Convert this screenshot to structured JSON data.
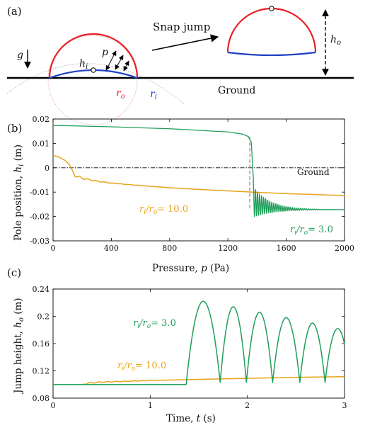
{
  "panel_a": {
    "label": "(a)",
    "snap_jump": "Snap jump",
    "gravity": "g",
    "pressure": "p",
    "inner_pole": "h",
    "inner_pole_sub": "i",
    "jump_height": "h",
    "jump_height_sub": "o",
    "outer_radius": "r",
    "outer_radius_sub": "o",
    "inner_radius": "r",
    "inner_radius_sub": "i",
    "ground": "Ground",
    "colors": {
      "outer_shell": "#e8202a",
      "inner_shell": "#1d3fc6",
      "ground_line": "#000000",
      "construction": "#e89494"
    }
  },
  "chart_data": [
    {
      "type": "line",
      "panel_label": "(b)",
      "xlabel_text": "Pressure, ",
      "xlabel_var": "p",
      "xlabel_unit": " (Pa)",
      "ylabel_text": "Pole position, ",
      "ylabel_var": "h",
      "ylabel_sub": "i",
      "ylabel_unit": " (m)",
      "xlim": [
        0,
        2000
      ],
      "ylim": [
        -0.03,
        0.02
      ],
      "xticks": [
        0,
        400,
        800,
        1200,
        1600,
        2000
      ],
      "xtick_labels": [
        "0",
        "400",
        "800",
        "1200",
        "1600",
        "2000"
      ],
      "yticks": [
        -0.03,
        -0.02,
        -0.01,
        0,
        0.01,
        0.02
      ],
      "ytick_labels": [
        "-0.03",
        "-0.02",
        "-0.01",
        "0",
        "0.01",
        "0.02"
      ],
      "ground_level": 0,
      "ground_label": "Ground",
      "grid": false,
      "series": [
        {
          "label_var": "r",
          "label_sub1": "i",
          "label_mid": "/",
          "label_var2": "r",
          "label_sub2": "o",
          "label_value": "= 3.0",
          "color": "#1f9e5a",
          "x": [
            0,
            400,
            800,
            1200,
            1300,
            1340,
            1360,
            1375
          ],
          "y": [
            0.0174,
            0.0168,
            0.016,
            0.0147,
            0.0138,
            0.0128,
            0.0105,
            -0.005
          ],
          "oscillation": {
            "start": 1375,
            "end": 2000,
            "center_start": -0.014,
            "center_end": -0.0172,
            "amplitude_start": 0.0062,
            "decay_per_pa": 0.0085,
            "period_pa": 14
          }
        },
        {
          "label_var": "r",
          "label_sub1": "i",
          "label_mid": "/",
          "label_var2": "r",
          "label_sub2": "o",
          "label_value": "= 10.0",
          "color": "#e8a317",
          "x": [
            0,
            40,
            80,
            110,
            130,
            150,
            200,
            300,
            400,
            600,
            800,
            1000,
            1200,
            1400,
            1600,
            1800,
            2000
          ],
          "y": [
            0.0051,
            0.0044,
            0.0031,
            0.0015,
            -0.0008,
            -0.0032,
            -0.0043,
            -0.0055,
            -0.0063,
            -0.0073,
            -0.0082,
            -0.0089,
            -0.0095,
            -0.0101,
            -0.0106,
            -0.011,
            -0.0114
          ]
        }
      ],
      "jump_marker": {
        "x": 1350,
        "y_top": 0.0128,
        "y_bottom": -0.0165,
        "style": "dashed",
        "color": "#8a8a8a"
      }
    },
    {
      "type": "line",
      "panel_label": "(c)",
      "xlabel_text": "Time, ",
      "xlabel_var": "t",
      "xlabel_unit": " (s)",
      "ylabel_text": "Jump height, ",
      "ylabel_var": "h",
      "ylabel_sub": "o",
      "ylabel_unit": " (m)",
      "xlim": [
        0,
        3
      ],
      "ylim": [
        0.08,
        0.24
      ],
      "xticks": [
        0,
        1,
        2,
        3
      ],
      "xtick_labels": [
        "0",
        "1",
        "2",
        "3"
      ],
      "yticks": [
        0.08,
        0.12,
        0.16,
        0.2,
        0.24
      ],
      "ytick_labels": [
        "0.08",
        "0.12",
        "0.16",
        "0.2",
        "0.24"
      ],
      "grid": false,
      "series": [
        {
          "label_var": "r",
          "label_sub1": "i",
          "label_mid": "/",
          "label_var2": "r",
          "label_sub2": "o",
          "label_value": "= 3.0",
          "color": "#1f9e5a",
          "baseline": 0.1,
          "launch_time": 1.37,
          "bounce_starts": [
            1.37,
            1.72,
            1.99,
            2.26,
            2.54,
            2.8
          ],
          "bounce_peaks": [
            0.222,
            0.214,
            0.206,
            0.198,
            0.19,
            0.182
          ],
          "landing_height": 0.103,
          "final_level": 0.168
        },
        {
          "label_var": "r",
          "label_sub1": "i",
          "label_mid": "/",
          "label_var2": "r",
          "label_sub2": "o",
          "label_value": "= 10.0",
          "color": "#e8a317",
          "x": [
            0,
            0.3,
            0.34,
            0.4,
            0.5,
            0.7,
            1.0,
            1.5,
            2.0,
            2.5,
            3.0
          ],
          "y": [
            0.1,
            0.1,
            0.1015,
            0.1025,
            0.1035,
            0.1045,
            0.1058,
            0.1075,
            0.109,
            0.1105,
            0.1115
          ]
        }
      ]
    }
  ]
}
